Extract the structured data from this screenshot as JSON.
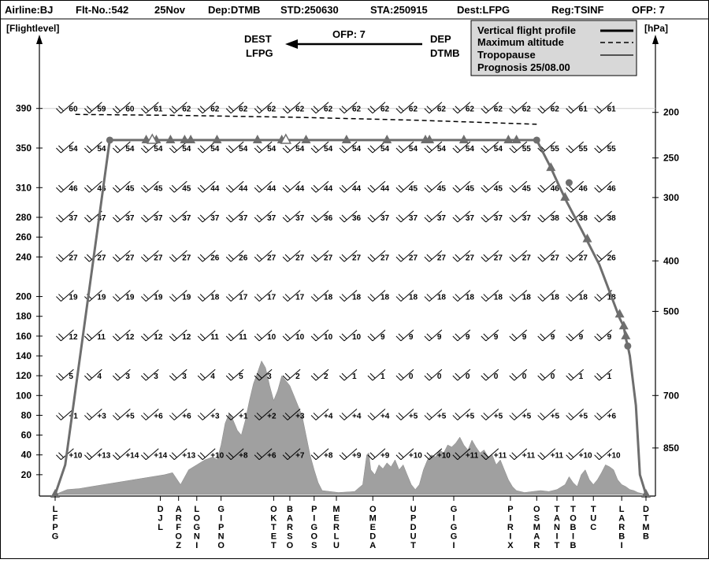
{
  "header": {
    "airline": "Airline:BJ",
    "flight": "Flt-No.:542",
    "date": "25Nov",
    "dep": "Dep:DTMB",
    "std": "STD:250630",
    "sta": "STA:250915",
    "dest": "Dest:LFPG",
    "reg": "Reg:TSINF",
    "ofp": "OFP: 7"
  },
  "direction": {
    "dest_label": "DEST",
    "dest_code": "LFPG",
    "ofp": "OFP: 7",
    "dep_label": "DEP",
    "dep_code": "DTMB"
  },
  "legend": {
    "profile": "Vertical flight profile",
    "max_alt": "Maximum altitude",
    "tropo": "Tropopause",
    "prognosis": "Prognosis  25/08.00"
  },
  "colors": {
    "profile": "#6e6e6e",
    "terrain": "#a0a0a0",
    "legend_bg": "#d8d8d8"
  },
  "chart_data": {
    "type": "line",
    "xlabel": "",
    "ylabel_left": "[Flightlevel]",
    "ylabel_right": "[hPa]",
    "ylim": [
      0,
      420
    ],
    "flightlevel_ticks": [
      20,
      40,
      60,
      80,
      100,
      120,
      140,
      160,
      180,
      200,
      240,
      260,
      280,
      310,
      350,
      390
    ],
    "pressure_ticks": [
      {
        "hpa": "200",
        "fl": 386
      },
      {
        "hpa": "250",
        "fl": 340
      },
      {
        "hpa": "300",
        "fl": 300
      },
      {
        "hpa": "400",
        "fl": 236
      },
      {
        "hpa": "500",
        "fl": 185
      },
      {
        "hpa": "700",
        "fl": 100
      },
      {
        "hpa": "850",
        "fl": 47
      }
    ],
    "waypoints": [
      {
        "name": "LFPG",
        "x": 0
      },
      {
        "name": "DJL",
        "x": 26
      },
      {
        "name": "ARFOZ",
        "x": 30.5
      },
      {
        "name": "LOGNI",
        "x": 35
      },
      {
        "name": "GIPNO",
        "x": 41
      },
      {
        "name": "OKTET",
        "x": 54
      },
      {
        "name": "BARSO",
        "x": 58
      },
      {
        "name": "PIGOS",
        "x": 64
      },
      {
        "name": "MERLU",
        "x": 69.5
      },
      {
        "name": "OMEDA",
        "x": 78.5
      },
      {
        "name": "UPDUT",
        "x": 88.5
      },
      {
        "name": "GIGGI",
        "x": 98.5
      },
      {
        "name": "PIRIX",
        "x": 112.5
      },
      {
        "name": "OSMAR",
        "x": 119
      },
      {
        "name": "TANIT",
        "x": 124
      },
      {
        "name": "TOBIB",
        "x": 128
      },
      {
        "name": "TUC",
        "x": 133
      },
      {
        "name": "LARBI",
        "x": 140
      },
      {
        "name": "DTMB",
        "x": 146
      }
    ],
    "xlim": [
      0,
      146
    ],
    "profile": {
      "x": [
        0,
        2.5,
        13.5,
        119,
        122.5,
        124.5,
        126.5,
        130,
        134.5,
        139.5,
        140.5,
        141,
        141.5,
        142,
        143.5,
        144.5,
        146
      ],
      "y": [
        0,
        30,
        358,
        358,
        330,
        312,
        295,
        268,
        232,
        178,
        170,
        158,
        150,
        140,
        90,
        20,
        0
      ],
      "triangles": [
        {
          "x": 0,
          "y": 0
        },
        {
          "x": 22.5,
          "y": 358
        },
        {
          "x": 25,
          "y": 358
        },
        {
          "x": 28.5,
          "y": 358
        },
        {
          "x": 32,
          "y": 358
        },
        {
          "x": 33.5,
          "y": 358
        },
        {
          "x": 40,
          "y": 358
        },
        {
          "x": 50,
          "y": 358
        },
        {
          "x": 56,
          "y": 358
        },
        {
          "x": 62,
          "y": 358
        },
        {
          "x": 72,
          "y": 358
        },
        {
          "x": 82,
          "y": 358
        },
        {
          "x": 91.5,
          "y": 358
        },
        {
          "x": 92.5,
          "y": 358
        },
        {
          "x": 101,
          "y": 358
        },
        {
          "x": 112,
          "y": 358
        },
        {
          "x": 114,
          "y": 358
        },
        {
          "x": 122.5,
          "y": 330
        },
        {
          "x": 126,
          "y": 300
        },
        {
          "x": 131.5,
          "y": 258
        },
        {
          "x": 139.5,
          "y": 182
        },
        {
          "x": 140.5,
          "y": 170
        },
        {
          "x": 141,
          "y": 160
        },
        {
          "x": 146,
          "y": 0
        }
      ],
      "hollow_triangles": [
        {
          "x": 24,
          "y": 358
        },
        {
          "x": 57,
          "y": 358
        }
      ],
      "circles": [
        {
          "x": 13.5,
          "y": 358
        },
        {
          "x": 119,
          "y": 358
        },
        {
          "x": 127,
          "y": 315
        },
        {
          "x": 141.5,
          "y": 150
        }
      ]
    },
    "max_altitude": {
      "x": [
        5,
        30,
        60,
        90,
        119
      ],
      "y": [
        384,
        383,
        381,
        378,
        374
      ]
    },
    "terrain": {
      "x": [
        0,
        3,
        6,
        9,
        12,
        15,
        18,
        21,
        24,
        27,
        29,
        31,
        33,
        35,
        37,
        39,
        40,
        41,
        42,
        43,
        44,
        45,
        46,
        47,
        48,
        49,
        50,
        51,
        52,
        53,
        54,
        55,
        56,
        57,
        58,
        59,
        60,
        61,
        62,
        63,
        64,
        65,
        66,
        70,
        74,
        76,
        77,
        77.5,
        78,
        79,
        80,
        81,
        82,
        83,
        84,
        85,
        86,
        87,
        88,
        89,
        90,
        91,
        92,
        93,
        94,
        95,
        96,
        97,
        98,
        99,
        100,
        101,
        102,
        103,
        104,
        105,
        106,
        107,
        108,
        109,
        110,
        111,
        112,
        113,
        114,
        116,
        118,
        120,
        122,
        124,
        126,
        127,
        128,
        129,
        130,
        131,
        132,
        133,
        134,
        135,
        136,
        137,
        138,
        139,
        140,
        141,
        142,
        143,
        144,
        145,
        146
      ],
      "y": [
        0,
        5,
        6,
        8,
        10,
        12,
        14,
        16,
        18,
        20,
        22,
        10,
        25,
        30,
        35,
        38,
        35,
        50,
        72,
        82,
        75,
        65,
        60,
        75,
        95,
        112,
        123,
        135,
        128,
        110,
        95,
        105,
        120,
        115,
        110,
        100,
        90,
        80,
        60,
        40,
        25,
        12,
        4,
        2,
        3,
        10,
        40,
        42,
        25,
        20,
        30,
        26,
        32,
        28,
        35,
        25,
        30,
        20,
        10,
        5,
        10,
        25,
        35,
        40,
        38,
        45,
        42,
        50,
        48,
        52,
        58,
        50,
        45,
        55,
        48,
        42,
        45,
        38,
        40,
        30,
        35,
        25,
        15,
        8,
        4,
        2,
        3,
        4,
        3,
        5,
        10,
        18,
        12,
        8,
        20,
        25,
        15,
        10,
        15,
        22,
        30,
        28,
        25,
        15,
        10,
        8,
        5,
        4,
        2,
        1,
        0
      ]
    },
    "wind_temps": [
      {
        "fl": 390,
        "x": [
          3,
          10,
          17,
          24,
          31,
          38,
          45,
          52,
          59,
          66,
          73,
          80,
          87,
          94,
          101,
          108,
          115,
          122,
          129,
          136
        ],
        "t": [
          "60",
          "59",
          "60",
          "61",
          "62",
          "62",
          "62",
          "62",
          "62",
          "62",
          "62",
          "62",
          "62",
          "62",
          "62",
          "62",
          "62",
          "62",
          "61",
          "61"
        ]
      },
      {
        "fl": 350,
        "x": [
          3,
          10,
          17,
          24,
          31,
          38,
          45,
          52,
          59,
          66,
          73,
          80,
          87,
          94,
          101,
          108,
          115,
          122,
          129,
          136
        ],
        "t": [
          "54",
          "54",
          "54",
          "54",
          "54",
          "54",
          "54",
          "54",
          "54",
          "54",
          "54",
          "54",
          "54",
          "54",
          "54",
          "54",
          "55",
          "55",
          "55",
          "55"
        ]
      },
      {
        "fl": 310,
        "x": [
          3,
          10,
          17,
          24,
          31,
          38,
          45,
          52,
          59,
          66,
          73,
          80,
          87,
          94,
          101,
          108,
          115,
          122,
          129,
          136
        ],
        "t": [
          "46",
          "46",
          "45",
          "45",
          "45",
          "44",
          "44",
          "44",
          "44",
          "44",
          "44",
          "44",
          "45",
          "45",
          "45",
          "45",
          "45",
          "46",
          "46",
          "46"
        ]
      },
      {
        "fl": 280,
        "x": [
          3,
          10,
          17,
          24,
          31,
          38,
          45,
          52,
          59,
          66,
          73,
          80,
          87,
          94,
          101,
          108,
          115,
          122,
          129,
          136
        ],
        "t": [
          "37",
          "37",
          "37",
          "37",
          "37",
          "37",
          "37",
          "37",
          "37",
          "36",
          "36",
          "37",
          "37",
          "37",
          "37",
          "37",
          "37",
          "38",
          "38",
          "38"
        ]
      },
      {
        "fl": 240,
        "x": [
          3,
          10,
          17,
          24,
          31,
          38,
          45,
          52,
          59,
          66,
          73,
          80,
          87,
          94,
          101,
          108,
          115,
          122,
          129,
          136
        ],
        "t": [
          "27",
          "27",
          "27",
          "27",
          "27",
          "26",
          "26",
          "27",
          "27",
          "27",
          "27",
          "27",
          "27",
          "27",
          "27",
          "27",
          "27",
          "27",
          "27",
          "26"
        ]
      },
      {
        "fl": 200,
        "x": [
          3,
          10,
          17,
          24,
          31,
          38,
          45,
          52,
          59,
          66,
          73,
          80,
          87,
          94,
          101,
          108,
          115,
          122,
          129,
          136
        ],
        "t": [
          "19",
          "19",
          "19",
          "19",
          "19",
          "18",
          "17",
          "17",
          "17",
          "18",
          "18",
          "18",
          "18",
          "18",
          "18",
          "18",
          "18",
          "18",
          "18",
          "18"
        ]
      },
      {
        "fl": 160,
        "x": [
          3,
          10,
          17,
          24,
          31,
          38,
          45,
          52,
          59,
          66,
          73,
          80,
          87,
          94,
          101,
          108,
          115,
          122,
          129,
          136
        ],
        "t": [
          "12",
          "11",
          "12",
          "12",
          "12",
          "11",
          "11",
          "10",
          "10",
          "10",
          "10",
          "9",
          "9",
          "9",
          "9",
          "9",
          "9",
          "9",
          "9",
          "9"
        ]
      },
      {
        "fl": 120,
        "x": [
          3,
          10,
          17,
          24,
          31,
          38,
          45,
          52,
          59,
          66,
          73,
          80,
          87,
          94,
          101,
          108,
          115,
          122,
          129,
          136
        ],
        "t": [
          "5",
          "4",
          "3",
          "3",
          "3",
          "4",
          "5",
          "3",
          "2",
          "2",
          "1",
          "1",
          "0",
          "0",
          "0",
          "0",
          "0",
          "0",
          "1",
          "1"
        ]
      },
      {
        "fl": 80,
        "x": [
          3,
          10,
          17,
          24,
          31,
          38,
          45,
          52,
          59,
          66,
          73,
          80,
          87,
          94,
          101,
          108,
          115,
          122,
          129,
          136
        ],
        "t": [
          "+1",
          "+3",
          "+5",
          "+6",
          "+6",
          "+3",
          "+1",
          "+2",
          "+3",
          "+4",
          "+4",
          "+4",
          "+5",
          "+5",
          "+5",
          "+5",
          "+5",
          "+5",
          "+5",
          "+6"
        ]
      },
      {
        "fl": 40,
        "x": [
          3,
          10,
          17,
          24,
          31,
          38,
          45,
          52,
          59,
          66,
          73,
          80,
          87,
          94,
          101,
          108,
          115,
          122,
          129,
          136
        ],
        "t": [
          "+10",
          "+13",
          "+14",
          "+14",
          "+13",
          "+10",
          "+8",
          "+6",
          "+7",
          "+8",
          "+9",
          "+9",
          "+10",
          "+10",
          "+11",
          "+11",
          "+11",
          "+11",
          "+10",
          "+10"
        ]
      }
    ]
  }
}
